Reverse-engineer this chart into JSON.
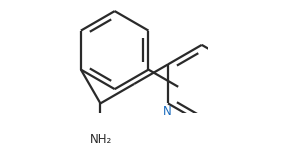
{
  "bg_color": "#ffffff",
  "line_color": "#2a2a2a",
  "bond_width": 1.6,
  "font_size": 8.5,
  "N_color": "#1a6bbd",
  "fig_width": 2.84,
  "fig_height": 1.47,
  "dpi": 100
}
